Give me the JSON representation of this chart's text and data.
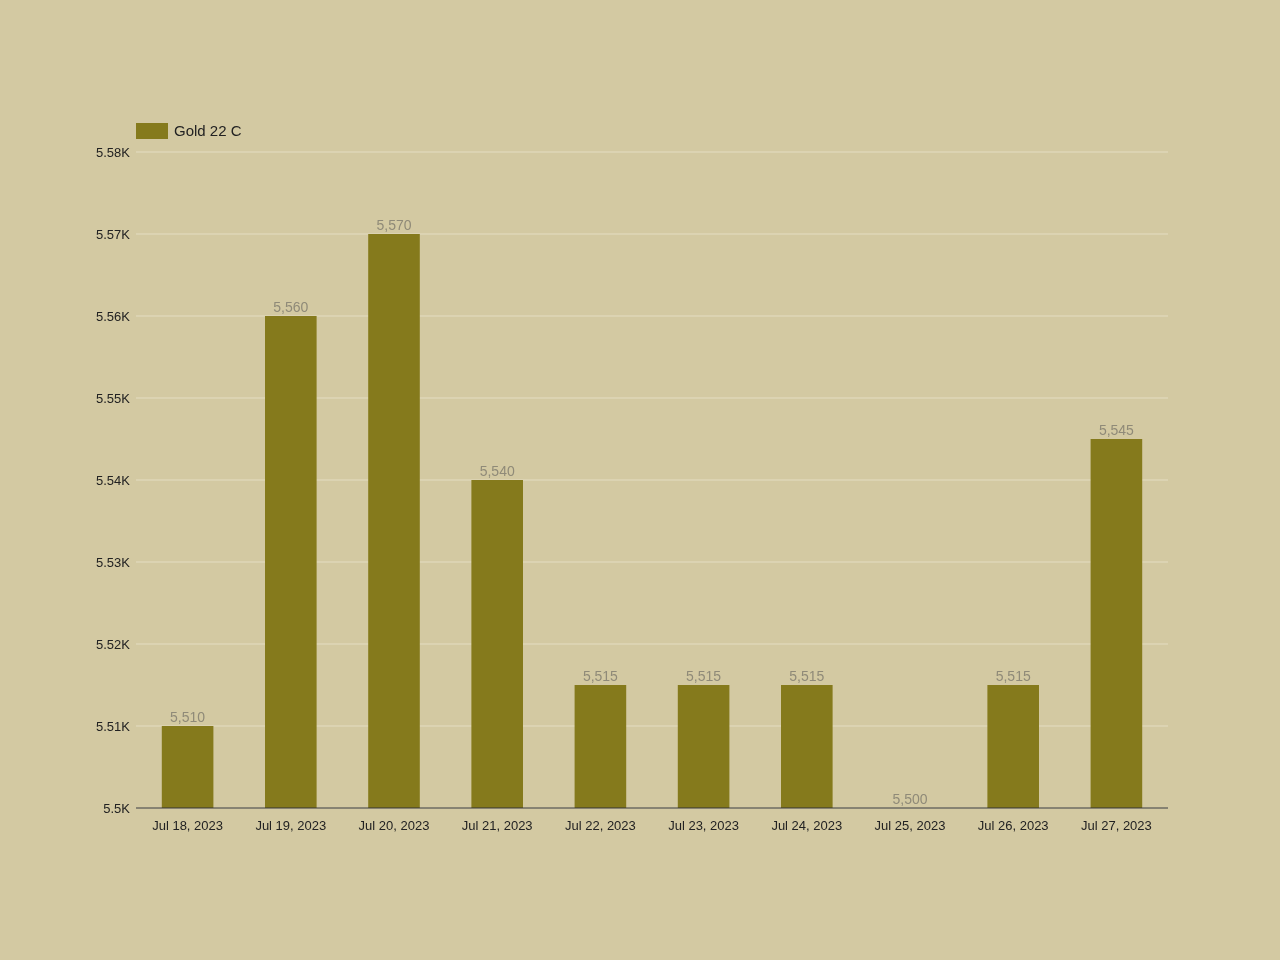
{
  "chart_data": {
    "type": "bar",
    "categories": [
      "Jul 18, 2023",
      "Jul 19, 2023",
      "Jul 20, 2023",
      "Jul 21, 2023",
      "Jul 22, 2023",
      "Jul 23, 2023",
      "Jul 24, 2023",
      "Jul 25, 2023",
      "Jul 26, 2023",
      "Jul 27, 2023"
    ],
    "series": [
      {
        "name": "Gold 22 C",
        "color": "#857a1c",
        "values": [
          5510,
          5560,
          5570,
          5540,
          5515,
          5515,
          5515,
          5500,
          5515,
          5545
        ],
        "value_labels": [
          "5,510",
          "5,560",
          "5,570",
          "5,540",
          "5,515",
          "5,515",
          "5,515",
          "5,500",
          "5,515",
          "5,545"
        ]
      }
    ],
    "ylim": [
      5500,
      5580
    ],
    "yticks": [
      {
        "value": 5500,
        "label": "5.5K"
      },
      {
        "value": 5510,
        "label": "5.51K"
      },
      {
        "value": 5520,
        "label": "5.52K"
      },
      {
        "value": 5530,
        "label": "5.53K"
      },
      {
        "value": 5540,
        "label": "5.54K"
      },
      {
        "value": 5550,
        "label": "5.55K"
      },
      {
        "value": 5560,
        "label": "5.56K"
      },
      {
        "value": 5570,
        "label": "5.57K"
      },
      {
        "value": 5580,
        "label": "5.58K"
      }
    ],
    "grid": "y",
    "legend": "top left"
  }
}
